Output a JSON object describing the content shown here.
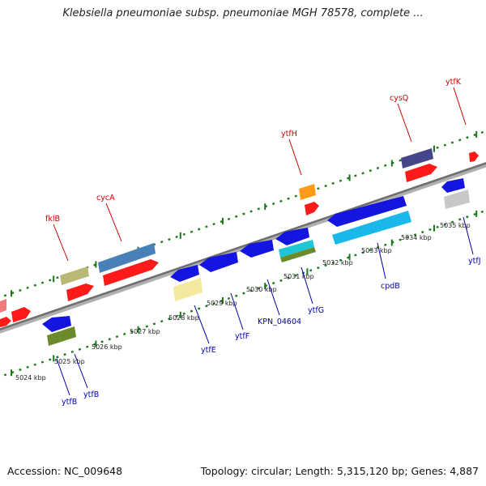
{
  "header": {
    "title": "Klebsiella pneumoniae subsp. pneumoniae MGH 78578, complete ..."
  },
  "footer": {
    "accession": "Accession: NC_009648",
    "summary": "Topology: circular; Length: 5,315,120 bp; Genes: 4,887"
  },
  "colors": {
    "forward_label": "#cc0000",
    "reverse_label": "#0000aa",
    "backbone": "#888888",
    "ruler_dots": "#1a7a1a"
  },
  "ruler": {
    "ticks": [
      {
        "label": "5024 kbp",
        "kbp": 5024
      },
      {
        "label": "5025 kbp",
        "kbp": 5025
      },
      {
        "label": "5026 kbp",
        "kbp": 5026
      },
      {
        "label": "5027 kbp",
        "kbp": 5027
      },
      {
        "label": "5028 kbp",
        "kbp": 5028
      },
      {
        "label": "5029 kbp",
        "kbp": 5029
      },
      {
        "label": "5030 kbp",
        "kbp": 5030
      },
      {
        "label": "5031 kbp",
        "kbp": 5031
      },
      {
        "label": "5032 kbp",
        "kbp": 5032
      },
      {
        "label": "5033 kbp",
        "kbp": 5033
      },
      {
        "label": "5034 kbp",
        "kbp": 5034
      },
      {
        "label": "5035 kbp",
        "kbp": 5035
      }
    ]
  },
  "genes": {
    "forward": [
      {
        "name": "fklB",
        "color": "#ff0000"
      },
      {
        "name": "cycA",
        "color": "#ff0000"
      },
      {
        "name": "ytfH",
        "color": "#ff0000"
      },
      {
        "name": "cysQ",
        "color": "#ff0000"
      },
      {
        "name": "ytfK",
        "color": "#ff0000"
      }
    ],
    "reverse": [
      {
        "name": "ytfB",
        "color": "#0000ee"
      },
      {
        "name": "ytfB",
        "color": "#0000ee"
      },
      {
        "name": "ytfE",
        "color": "#0000ee"
      },
      {
        "name": "ytfF",
        "color": "#0000ee"
      },
      {
        "name": "KPN_04604",
        "color": "#0000ee"
      },
      {
        "name": "ytfG",
        "color": "#0000ee"
      },
      {
        "name": "cpdB",
        "color": "#0000ee"
      },
      {
        "name": "ytfJ",
        "color": "#0000ee"
      }
    ]
  }
}
